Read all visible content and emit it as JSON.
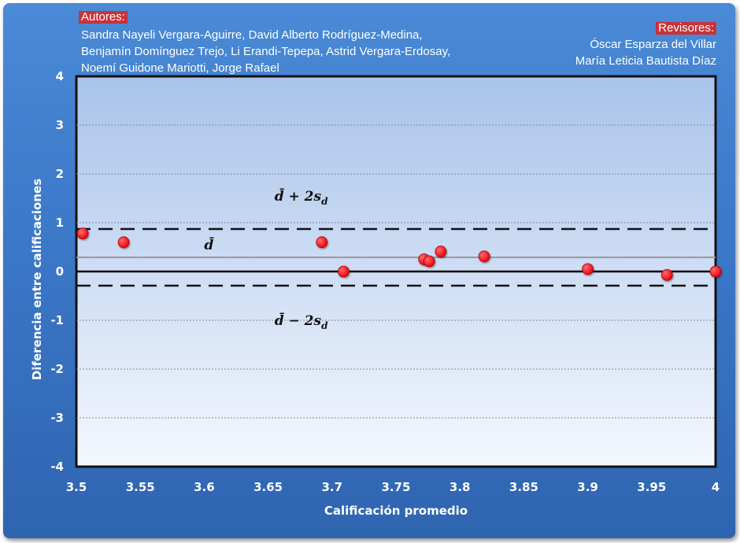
{
  "header": {
    "authors_label": "Autores:",
    "authors_text": "Sandra Nayeli Vergara-Aguirre, David Alberto Rodríguez-Medina, Benjamín Domínguez Trejo, Li Erandi-Tepepa, Astrid Vergara-Erdosay, Noemí Guidone Mariotti, Jorge Rafael",
    "reviewers_label": "Revisores:",
    "reviewers": [
      "Óscar Esparza del Villar",
      "María Leticia Bautista Díaz"
    ]
  },
  "colors": {
    "background": "#3b78c8",
    "plot_top": "#a9c3ea",
    "plot_bottom": "#f4f8fe",
    "point": "#e8000b",
    "mean_line": "#9a9a9a",
    "limit_line": "#111111",
    "tag": "#c8323a"
  },
  "chart_data": {
    "type": "scatter",
    "xlabel": "Calificación promedio",
    "ylabel": "Diferencia entre calificaciones",
    "xlim": [
      3.5,
      4
    ],
    "ylim": [
      -4,
      4
    ],
    "x_ticks": [
      "3.5",
      "3.55",
      "3.6",
      "3.65",
      "3.7",
      "3.75",
      "3.8",
      "3.85",
      "3.9",
      "3.95",
      "4"
    ],
    "y_ticks": [
      "4",
      "3",
      "2",
      "1",
      "0",
      "-1",
      "-2",
      "-3",
      "-4"
    ],
    "grid": true,
    "points": [
      {
        "x": 3.505,
        "y": 0.78
      },
      {
        "x": 3.537,
        "y": 0.6
      },
      {
        "x": 3.692,
        "y": 0.6
      },
      {
        "x": 3.709,
        "y": 0.0
      },
      {
        "x": 3.772,
        "y": 0.25
      },
      {
        "x": 3.776,
        "y": 0.21
      },
      {
        "x": 3.785,
        "y": 0.41
      },
      {
        "x": 3.819,
        "y": 0.31
      },
      {
        "x": 3.9,
        "y": 0.05
      },
      {
        "x": 3.962,
        "y": -0.07
      },
      {
        "x": 4.0,
        "y": 0.0
      }
    ],
    "reference_lines": [
      {
        "name": "upper-limit",
        "y": 0.87,
        "style": "dashed"
      },
      {
        "name": "mean",
        "y": 0.29,
        "style": "solid"
      },
      {
        "name": "lower-limit",
        "y": -0.29,
        "style": "dashed"
      },
      {
        "name": "zero",
        "y": 0,
        "style": "solid"
      }
    ],
    "annotations": [
      {
        "name": "upper-limit-label",
        "text": "d̄ + 2s",
        "sub": "d",
        "x": 3.655,
        "y": 1.45
      },
      {
        "name": "mean-label",
        "text": "d̄",
        "sub": "",
        "x": 3.6,
        "y": 0.45
      },
      {
        "name": "lower-limit-label",
        "text": "d̄ − 2s",
        "sub": "d",
        "x": 3.655,
        "y": -1.1
      }
    ]
  }
}
